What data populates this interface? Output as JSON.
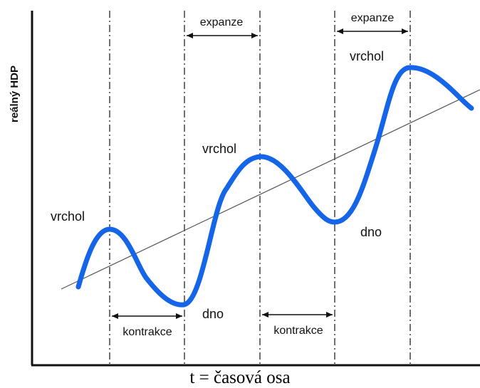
{
  "axes": {
    "y_label": "reálný HDP",
    "x_label": "t = časová osa"
  },
  "curve_color": "#1565e8",
  "labels": {
    "peak_1": "vrchol",
    "trough_1": "dno",
    "peak_2": "vrchol",
    "trough_2": "dno",
    "peak_3": "vrchol"
  },
  "phases": [
    {
      "name": "kontrakce"
    },
    {
      "name": "expanze"
    },
    {
      "name": "kontrakce"
    },
    {
      "name": "expanze"
    }
  ]
}
